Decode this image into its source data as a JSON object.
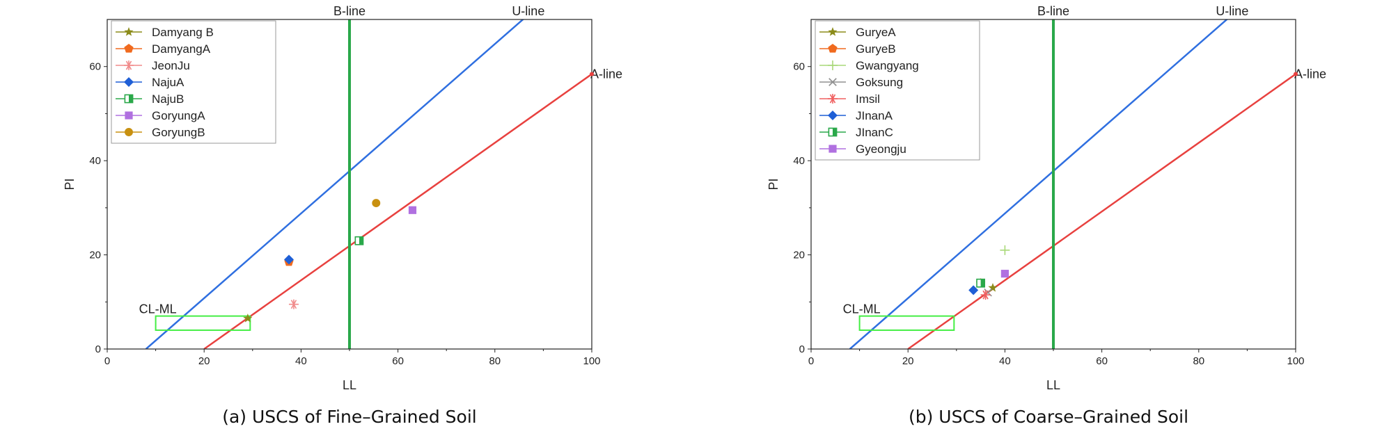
{
  "chart_data": [
    {
      "type": "scatter",
      "caption": "(a) USCS of Fine–Grained Soil",
      "xlabel": "LL",
      "ylabel": "PI",
      "xlim": [
        0,
        100
      ],
      "ylim": [
        0,
        70
      ],
      "xticks": [
        0,
        20,
        40,
        60,
        80,
        100
      ],
      "yticks": [
        0,
        20,
        40,
        60
      ],
      "grid": false,
      "legend_position": "top-left",
      "reference_lines": [
        {
          "name": "A-line",
          "color": "#e8413f",
          "x": [
            20,
            100
          ],
          "y": [
            0,
            58.4
          ]
        },
        {
          "name": "U-line",
          "color": "#2f6fe0",
          "x": [
            8,
            86.9
          ],
          "y": [
            0,
            71
          ]
        },
        {
          "name": "B-line",
          "color": "#2aa84a",
          "x": [
            50,
            50
          ],
          "y": [
            0,
            70
          ]
        }
      ],
      "region": {
        "name": "CL-ML",
        "color": "#44ee44",
        "x": [
          10,
          29.5
        ],
        "y": [
          4,
          7
        ]
      },
      "series": [
        {
          "name": "Damyang B",
          "marker": "star",
          "color": "#8b8b1a",
          "x": [
            29
          ],
          "y": [
            6.5
          ]
        },
        {
          "name": "DamyangA",
          "marker": "pentagon",
          "color": "#f06a1e",
          "x": [
            37.5
          ],
          "y": [
            18.5
          ]
        },
        {
          "name": "JeonJu",
          "marker": "asterisk",
          "color": "#f08a8a",
          "x": [
            38.5
          ],
          "y": [
            9.5
          ]
        },
        {
          "name": "NajuA",
          "marker": "diamond",
          "color": "#1f5fd6",
          "x": [
            37.5
          ],
          "y": [
            19
          ]
        },
        {
          "name": "NajuB",
          "marker": "halfsquare",
          "color": "#2aa84a",
          "x": [
            52
          ],
          "y": [
            23
          ]
        },
        {
          "name": "GoryungA",
          "marker": "square",
          "color": "#b070e0",
          "x": [
            63
          ],
          "y": [
            29.5
          ]
        },
        {
          "name": "GoryungB",
          "marker": "circle",
          "color": "#c89010",
          "x": [
            55.5
          ],
          "y": [
            31
          ]
        }
      ]
    },
    {
      "type": "scatter",
      "caption": "(b) USCS of Coarse–Grained Soil",
      "xlabel": "LL",
      "ylabel": "PI",
      "xlim": [
        0,
        100
      ],
      "ylim": [
        0,
        70
      ],
      "xticks": [
        0,
        20,
        40,
        60,
        80,
        100
      ],
      "yticks": [
        0,
        20,
        40,
        60
      ],
      "grid": false,
      "legend_position": "top-left",
      "reference_lines": [
        {
          "name": "A-line",
          "color": "#e8413f",
          "x": [
            20,
            100
          ],
          "y": [
            0,
            58.4
          ]
        },
        {
          "name": "U-line",
          "color": "#2f6fe0",
          "x": [
            8,
            86.9
          ],
          "y": [
            0,
            71
          ]
        },
        {
          "name": "B-line",
          "color": "#2aa84a",
          "x": [
            50,
            50
          ],
          "y": [
            0,
            70
          ]
        }
      ],
      "region": {
        "name": "CL-ML",
        "color": "#44ee44",
        "x": [
          10,
          29.5
        ],
        "y": [
          4,
          7
        ]
      },
      "series": [
        {
          "name": "GuryeA",
          "marker": "star",
          "color": "#8b8b1a",
          "x": [
            37.5
          ],
          "y": [
            13
          ]
        },
        {
          "name": "GuryeB",
          "marker": "pentagon",
          "color": "#f06a1e",
          "x": [
            35
          ],
          "y": [
            14
          ]
        },
        {
          "name": "Gwangyang",
          "marker": "plus",
          "color": "#a8d878",
          "x": [
            40
          ],
          "y": [
            21
          ]
        },
        {
          "name": "Goksung",
          "marker": "cross",
          "color": "#909090",
          "x": [
            36.5
          ],
          "y": [
            12
          ]
        },
        {
          "name": "Imsil",
          "marker": "asterisk",
          "color": "#f06060",
          "x": [
            36
          ],
          "y": [
            11.5
          ]
        },
        {
          "name": "JInanA",
          "marker": "diamond",
          "color": "#1f5fd6",
          "x": [
            33.5
          ],
          "y": [
            12.5
          ]
        },
        {
          "name": "JInanC",
          "marker": "halfsquare",
          "color": "#2aa84a",
          "x": [
            35
          ],
          "y": [
            14
          ]
        },
        {
          "name": "Gyeongju",
          "marker": "square",
          "color": "#b070e0",
          "x": [
            40
          ],
          "y": [
            16
          ]
        }
      ]
    }
  ]
}
